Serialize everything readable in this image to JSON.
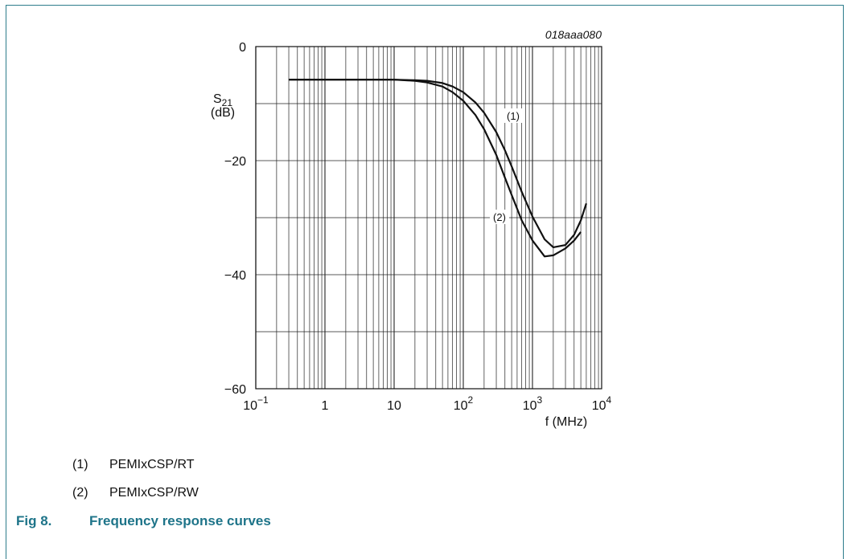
{
  "chart_data": {
    "type": "line",
    "code": "018aaa080",
    "ylabel_main": "S",
    "ylabel_sub": "21",
    "ylabel_unit": "(dB)",
    "xlabel": "f (MHz)",
    "x_scale": "log",
    "xlim": [
      0.1,
      10000
    ],
    "ylim": [
      -60,
      0
    ],
    "grid": true,
    "y_ticks": [
      "0",
      "−20",
      "−40",
      "−60"
    ],
    "x_ticks": [
      {
        "base": "10",
        "exp": "−1"
      },
      {
        "base": "1",
        "exp": ""
      },
      {
        "base": "10",
        "exp": ""
      },
      {
        "base": "10",
        "exp": "2"
      },
      {
        "base": "10",
        "exp": "3"
      },
      {
        "base": "10",
        "exp": "4"
      }
    ],
    "series": [
      {
        "name": "(1)",
        "x": [
          0.3,
          1,
          3,
          10,
          20,
          30,
          50,
          70,
          100,
          150,
          200,
          300,
          400,
          500,
          700,
          1000,
          1500,
          2000,
          3000,
          4000,
          5000,
          6000
        ],
        "y": [
          -5.8,
          -5.8,
          -5.8,
          -5.8,
          -5.9,
          -6.0,
          -6.4,
          -7.0,
          -8.0,
          -9.8,
          -11.6,
          -15.0,
          -18.2,
          -21.0,
          -25.5,
          -29.8,
          -33.8,
          -35.2,
          -34.8,
          -33.0,
          -30.5,
          -27.5
        ]
      },
      {
        "name": "(2)",
        "x": [
          0.3,
          1,
          3,
          10,
          20,
          30,
          50,
          70,
          100,
          150,
          200,
          300,
          400,
          500,
          700,
          1000,
          1500,
          2000,
          3000,
          4000,
          5000
        ],
        "y": [
          -5.8,
          -5.8,
          -5.8,
          -5.8,
          -6.0,
          -6.3,
          -7.0,
          -8.0,
          -9.5,
          -12.0,
          -14.5,
          -19.0,
          -23.0,
          -26.0,
          -30.5,
          -34.0,
          -36.8,
          -36.6,
          -35.4,
          -34.0,
          -32.5
        ]
      }
    ],
    "annotations": [
      {
        "text": "(1)",
        "series": 0
      },
      {
        "text": "(2)",
        "series": 1
      }
    ]
  },
  "legend": [
    {
      "num": "(1)",
      "label": "PEMIxCSP/RT"
    },
    {
      "num": "(2)",
      "label": "PEMIxCSP/RW"
    }
  ],
  "caption": {
    "fig": "Fig 8.",
    "title": "Frequency response curves"
  }
}
